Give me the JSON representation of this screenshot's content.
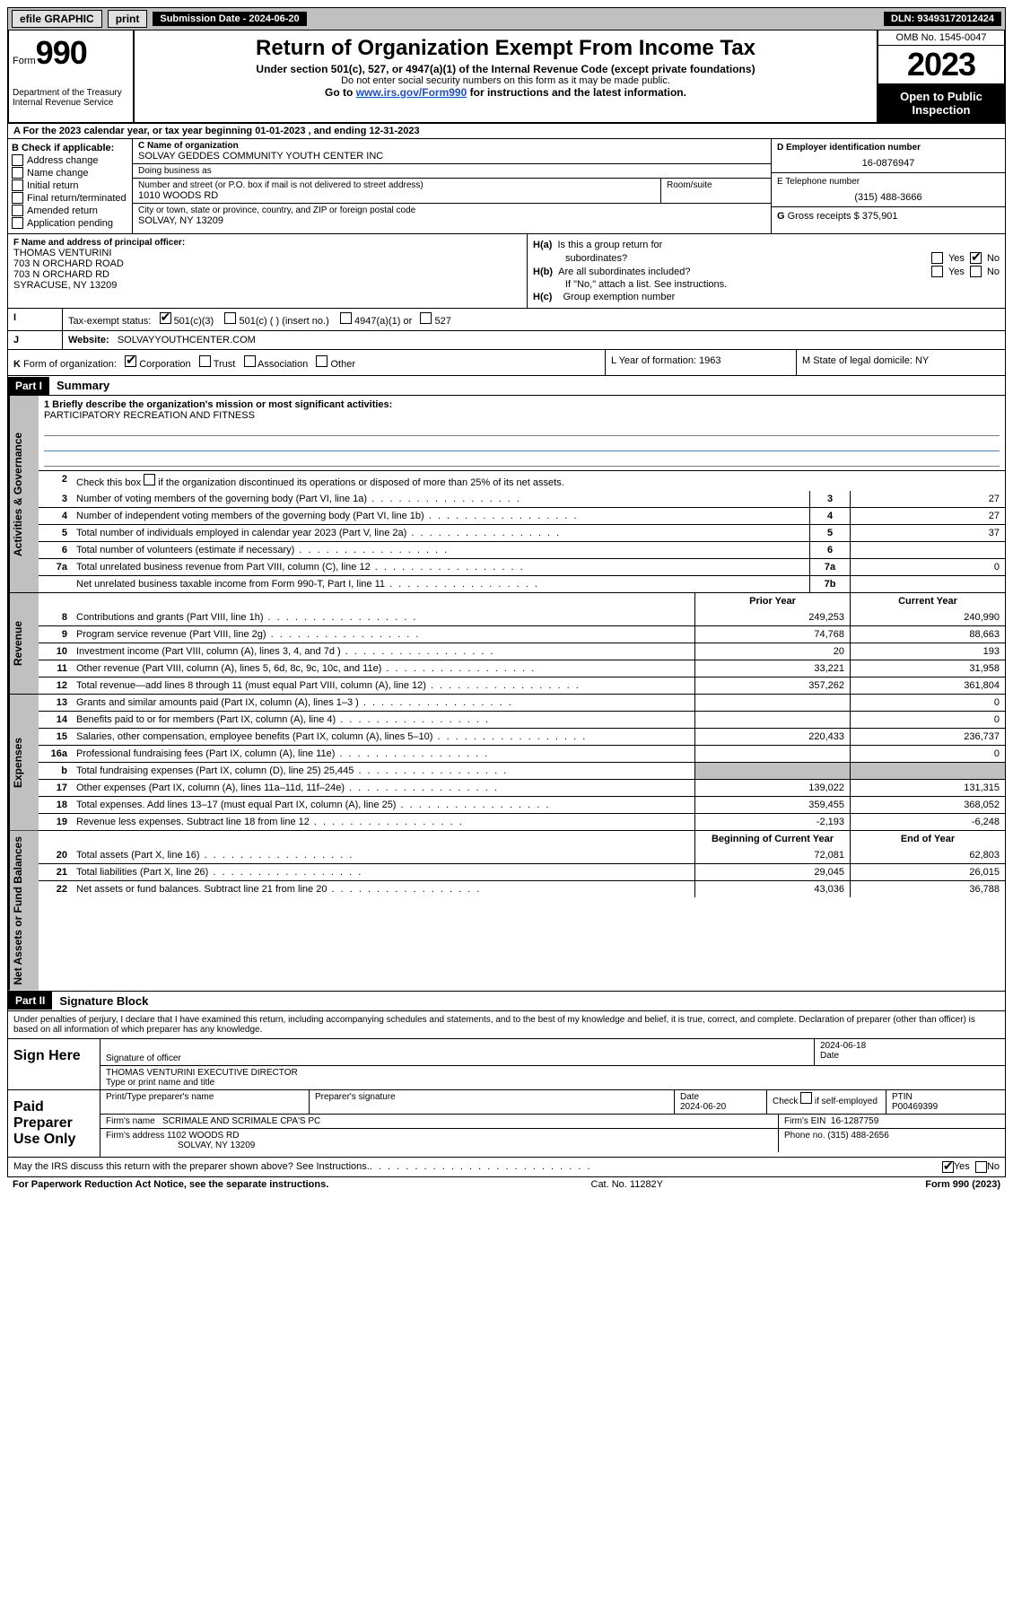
{
  "topbar": {
    "efile": "efile GRAPHIC",
    "print": "print",
    "submission": "Submission Date - 2024-06-20",
    "dln": "DLN: 93493172012424"
  },
  "header": {
    "form_label": "Form",
    "form_num": "990",
    "dept1": "Department of the Treasury",
    "dept2": "Internal Revenue Service",
    "title": "Return of Organization Exempt From Income Tax",
    "subtitle": "Under section 501(c), 527, or 4947(a)(1) of the Internal Revenue Code (except private foundations)",
    "note": "Do not enter social security numbers on this form as it may be made public.",
    "goto_prefix": "Go to ",
    "goto_link": "www.irs.gov/Form990",
    "goto_suffix": " for instructions and the latest information.",
    "omb": "OMB No. 1545-0047",
    "year": "2023",
    "open_pub": "Open to Public Inspection"
  },
  "row_a": "A For the 2023 calendar year, or tax year beginning 01-01-2023    , and ending 12-31-2023",
  "section_b": {
    "title": "B Check if applicable:",
    "items": [
      "Address change",
      "Name change",
      "Initial return",
      "Final return/terminated",
      "Amended return",
      "Application pending"
    ]
  },
  "section_c": {
    "name_label": "C Name of organization",
    "name": "SOLVAY GEDDES COMMUNITY YOUTH CENTER INC",
    "dba_label": "Doing business as",
    "dba": "",
    "street_label": "Number and street (or P.O. box if mail is not delivered to street address)",
    "street": "1010 WOODS RD",
    "room_label": "Room/suite",
    "room": "",
    "city_label": "City or town, state or province, country, and ZIP or foreign postal code",
    "city": "SOLVAY, NY  13209"
  },
  "section_d": {
    "label": "D Employer identification number",
    "value": "16-0876947"
  },
  "section_e": {
    "label": "E Telephone number",
    "value": "(315) 488-3666"
  },
  "section_g": {
    "label": "G",
    "text": "Gross receipts $",
    "value": "375,901"
  },
  "section_f": {
    "label": "F  Name and address of principal officer:",
    "lines": [
      "THOMAS VENTURINI",
      "703 N ORCHARD ROAD",
      "703 N ORCHARD RD",
      "SYRACUSE, NY  13209"
    ]
  },
  "section_h": {
    "ha": "H(a)  Is this a group return for subordinates?",
    "hb": "H(b)  Are all subordinates included?",
    "hb_note": "If \"No,\" attach a list. See instructions.",
    "hc": "H(c)  Group exemption number",
    "yes": "Yes",
    "no": "No"
  },
  "row_i": {
    "label": "I    Tax-exempt status:",
    "opt1": "501(c)(3)",
    "opt2": "501(c) (   ) (insert no.)",
    "opt3": "4947(a)(1) or",
    "opt4": "527"
  },
  "row_j": {
    "label": "J   Website:",
    "value": "SOLVAYYOUTHCENTER.COM"
  },
  "row_k": {
    "klabel": "K Form of organization:",
    "kopt1": "Corporation",
    "kopt2": "Trust",
    "kopt3": "Association",
    "kopt4": "Other",
    "l": "L Year of formation: 1963",
    "m": "M State of legal domicile: NY"
  },
  "part1": {
    "part": "Part I",
    "title": "Summary",
    "line1_label": "1  Briefly describe the organization's mission or most significant activities:",
    "mission": "PARTICIPATORY RECREATION AND FITNESS",
    "line2": "Check this box        if the organization discontinued its operations or disposed of more than 25% of its net assets."
  },
  "tabs": {
    "gov": "Activities & Governance",
    "rev": "Revenue",
    "exp": "Expenses",
    "net": "Net Assets or Fund Balances"
  },
  "gov_lines": [
    {
      "n": "3",
      "d": "Number of voting members of the governing body (Part VI, line 1a)",
      "k": "3",
      "v": "27"
    },
    {
      "n": "4",
      "d": "Number of independent voting members of the governing body (Part VI, line 1b)",
      "k": "4",
      "v": "27"
    },
    {
      "n": "5",
      "d": "Total number of individuals employed in calendar year 2023 (Part V, line 2a)",
      "k": "5",
      "v": "37"
    },
    {
      "n": "6",
      "d": "Total number of volunteers (estimate if necessary)",
      "k": "6",
      "v": ""
    },
    {
      "n": "7a",
      "d": "Total unrelated business revenue from Part VIII, column (C), line 12",
      "k": "7a",
      "v": "0"
    },
    {
      "n": "",
      "d": "Net unrelated business taxable income from Form 990-T, Part I, line 11",
      "k": "7b",
      "v": ""
    }
  ],
  "col_headers": {
    "prior": "Prior Year",
    "curr": "Current Year",
    "begin": "Beginning of Current Year",
    "end": "End of Year"
  },
  "rev_lines": [
    {
      "n": "8",
      "d": "Contributions and grants (Part VIII, line 1h)",
      "p": "249,253",
      "c": "240,990"
    },
    {
      "n": "9",
      "d": "Program service revenue (Part VIII, line 2g)",
      "p": "74,768",
      "c": "88,663"
    },
    {
      "n": "10",
      "d": "Investment income (Part VIII, column (A), lines 3, 4, and 7d )",
      "p": "20",
      "c": "193"
    },
    {
      "n": "11",
      "d": "Other revenue (Part VIII, column (A), lines 5, 6d, 8c, 9c, 10c, and 11e)",
      "p": "33,221",
      "c": "31,958"
    },
    {
      "n": "12",
      "d": "Total revenue—add lines 8 through 11 (must equal Part VIII, column (A), line 12)",
      "p": "357,262",
      "c": "361,804"
    }
  ],
  "exp_lines": [
    {
      "n": "13",
      "d": "Grants and similar amounts paid (Part IX, column (A), lines 1–3 )",
      "p": "",
      "c": "0"
    },
    {
      "n": "14",
      "d": "Benefits paid to or for members (Part IX, column (A), line 4)",
      "p": "",
      "c": "0"
    },
    {
      "n": "15",
      "d": "Salaries, other compensation, employee benefits (Part IX, column (A), lines 5–10)",
      "p": "220,433",
      "c": "236,737"
    },
    {
      "n": "16a",
      "d": "Professional fundraising fees (Part IX, column (A), line 11e)",
      "p": "",
      "c": "0"
    },
    {
      "n": "b",
      "d": "Total fundraising expenses (Part IX, column (D), line 25) 25,445",
      "p": "__SHADE__",
      "c": "__SHADE__"
    },
    {
      "n": "17",
      "d": "Other expenses (Part IX, column (A), lines 11a–11d, 11f–24e)",
      "p": "139,022",
      "c": "131,315"
    },
    {
      "n": "18",
      "d": "Total expenses. Add lines 13–17 (must equal Part IX, column (A), line 25)",
      "p": "359,455",
      "c": "368,052"
    },
    {
      "n": "19",
      "d": "Revenue less expenses. Subtract line 18 from line 12",
      "p": "-2,193",
      "c": "-6,248"
    }
  ],
  "net_lines": [
    {
      "n": "20",
      "d": "Total assets (Part X, line 16)",
      "p": "72,081",
      "c": "62,803"
    },
    {
      "n": "21",
      "d": "Total liabilities (Part X, line 26)",
      "p": "29,045",
      "c": "26,015"
    },
    {
      "n": "22",
      "d": "Net assets or fund balances. Subtract line 21 from line 20",
      "p": "43,036",
      "c": "36,788"
    }
  ],
  "part2": {
    "part": "Part II",
    "title": "Signature Block"
  },
  "sig_intro": "Under penalties of perjury, I declare that I have examined this return, including accompanying schedules and statements, and to the best of my knowledge and belief, it is true, correct, and complete. Declaration of preparer (other than officer) is based on all information of which preparer has any knowledge.",
  "sign_here": {
    "label": "Sign Here",
    "r1a": "Signature of officer",
    "r1b": "2024-06-18",
    "r1b_label": "Date",
    "r2": "THOMAS VENTURINI  EXECUTIVE DIRECTOR",
    "r2_label": "Type or print name and title"
  },
  "paid": {
    "label": "Paid Preparer Use Only",
    "h1": "Print/Type preparer's name",
    "h2": "Preparer's signature",
    "h3": "Date",
    "h3v": "2024-06-20",
    "h4": "Check        if self-employed",
    "h5": "PTIN",
    "h5v": "P00469399",
    "firm_label": "Firm's name",
    "firm": "SCRIMALE AND SCRIMALE CPA'S PC",
    "ein_label": "Firm's EIN",
    "ein": "16-1287759",
    "addr_label": "Firm's address",
    "addr1": "1102 WOODS RD",
    "addr2": "SOLVAY, NY  13209",
    "phone_label": "Phone no.",
    "phone": "(315) 488-2656"
  },
  "irs_discuss": {
    "q": "May the IRS discuss this return with the preparer shown above? See Instructions.",
    "yes": "Yes",
    "no": "No"
  },
  "footer": {
    "left": "For Paperwork Reduction Act Notice, see the separate instructions.",
    "mid": "Cat. No. 11282Y",
    "right": "Form 990 (2023)"
  }
}
